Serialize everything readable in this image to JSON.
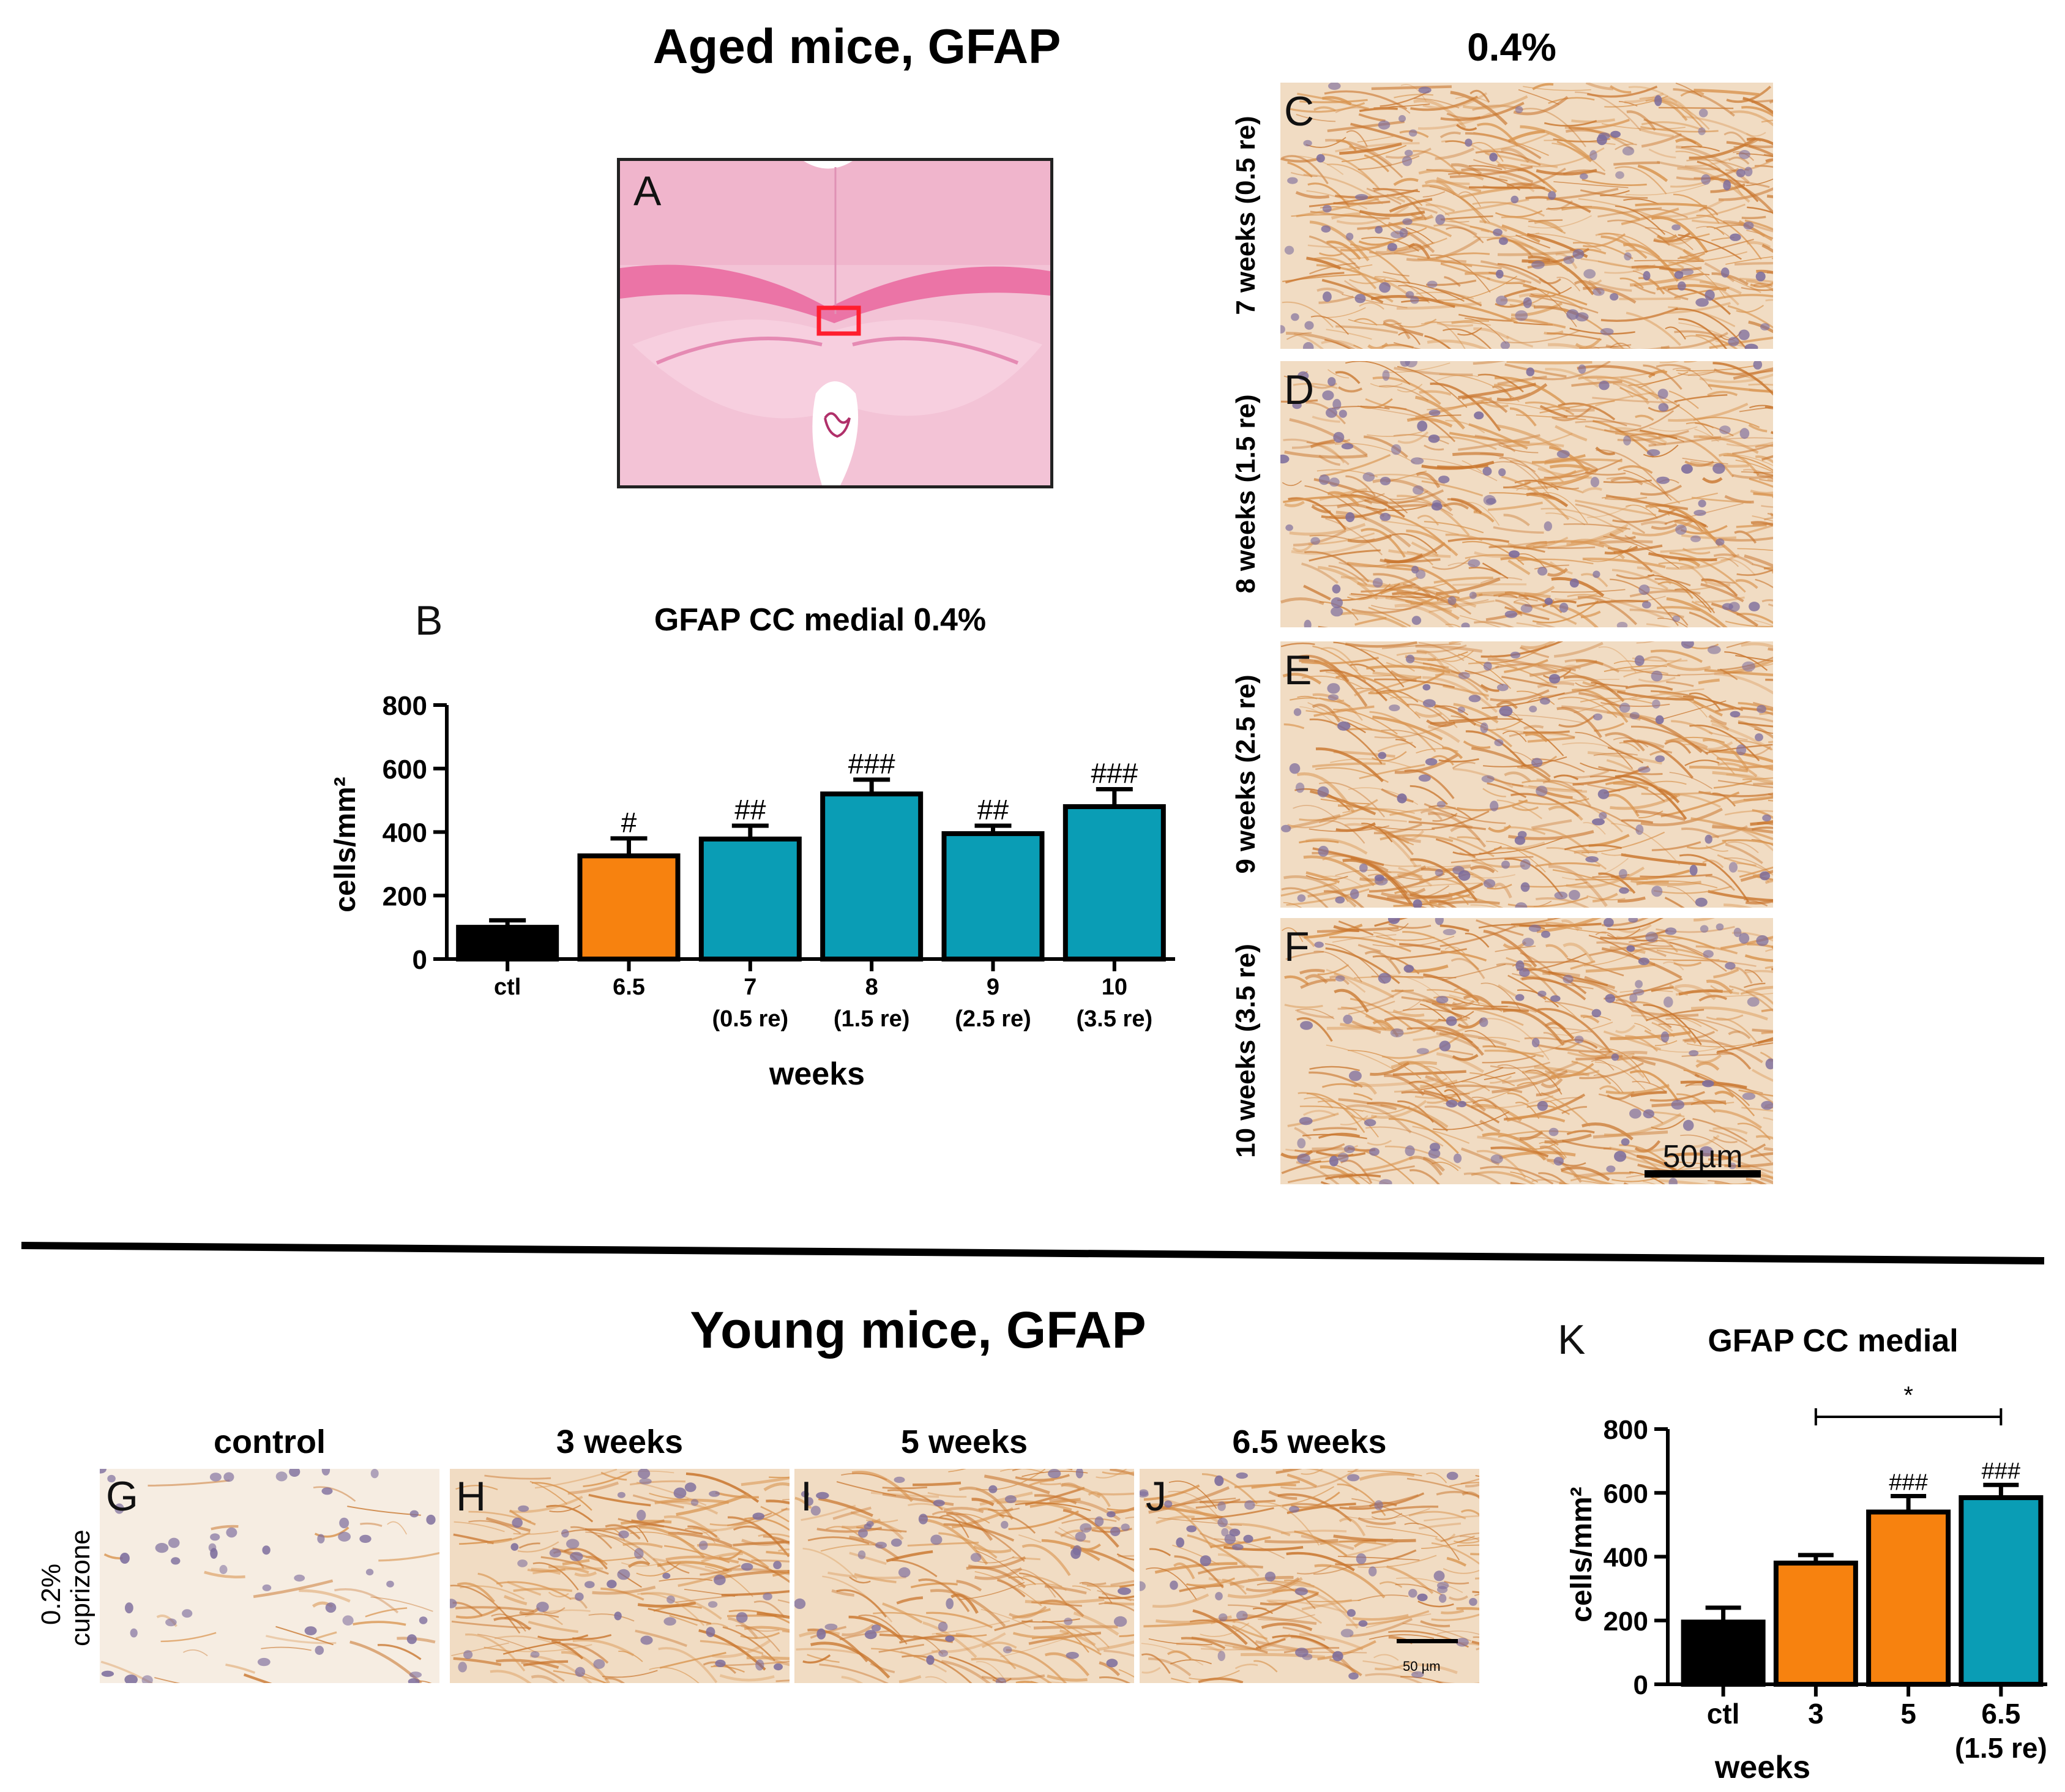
{
  "aged": {
    "title": "Aged mice, GFAP",
    "concentration_title": "0.4%",
    "panel_a_letter": "A",
    "panel_b_letter": "B",
    "micro_panels": [
      {
        "letter": "C",
        "label": "7 weeks (0.5 re)"
      },
      {
        "letter": "D",
        "label": "8 weeks (1.5 re)"
      },
      {
        "letter": "E",
        "label": "9 weeks (2.5 re)"
      },
      {
        "letter": "F",
        "label": "10 weeks (3.5 re)"
      }
    ],
    "scale_bar_label": "50µm"
  },
  "young": {
    "title": "Young mice, GFAP",
    "side_label_line1": "0.2%",
    "side_label_line2": "cuprizone",
    "panel_k_letter": "K",
    "micro_panels": [
      {
        "letter": "G",
        "label": "control"
      },
      {
        "letter": "H",
        "label": "3 weeks"
      },
      {
        "letter": "I",
        "label": "5 weeks"
      },
      {
        "letter": "J",
        "label": "6.5 weeks"
      }
    ],
    "scale_bar_label": "50 µm"
  },
  "colors": {
    "black": "#000000",
    "orange": "#F7820F",
    "teal": "#0A9DB5",
    "stain_bg": "#F1DCC3",
    "stain_fiber": "#C9762E",
    "nuclei": "#7C6C9C",
    "he_pink": "#F2B9D0",
    "roi_red": "#FF1E2E"
  },
  "chart_data": [
    {
      "type": "bar",
      "title": "GFAP CC medial 0.4%",
      "xlabel": "weeks",
      "ylabel": "cells/mm²",
      "ylim": [
        0,
        800
      ],
      "yticks": [
        "0",
        "200",
        "400",
        "600",
        "800"
      ],
      "categories": [
        "ctl",
        "6.5",
        "7",
        "8",
        "9",
        "10"
      ],
      "sublabels": [
        "",
        "",
        "(0.5 re)",
        "(1.5 re)",
        "(2.5 re)",
        "(3.5 re)"
      ],
      "values": [
        100,
        325,
        378,
        520,
        395,
        480
      ],
      "errors": [
        22,
        55,
        42,
        45,
        25,
        55
      ],
      "colors": [
        "black",
        "orange",
        "teal",
        "teal",
        "teal",
        "teal"
      ],
      "annotations": [
        "",
        "#",
        "##",
        "###",
        "##",
        "###"
      ]
    },
    {
      "type": "bar",
      "title": "GFAP CC medial",
      "xlabel": "weeks",
      "ylabel": "cells/mm²",
      "ylim": [
        0,
        800
      ],
      "yticks": [
        "0",
        "200",
        "400",
        "600",
        "800"
      ],
      "categories": [
        "ctl",
        "3",
        "5",
        "6.5"
      ],
      "sublabels": [
        "",
        "",
        "",
        "(1.5 re)"
      ],
      "values": [
        195,
        380,
        540,
        585
      ],
      "errors": [
        45,
        25,
        50,
        40
      ],
      "colors": [
        "black",
        "orange",
        "orange",
        "teal"
      ],
      "annotations": [
        "",
        "",
        "###",
        "###"
      ],
      "significance": {
        "from": "3",
        "to": "6.5",
        "label": "*"
      }
    }
  ]
}
